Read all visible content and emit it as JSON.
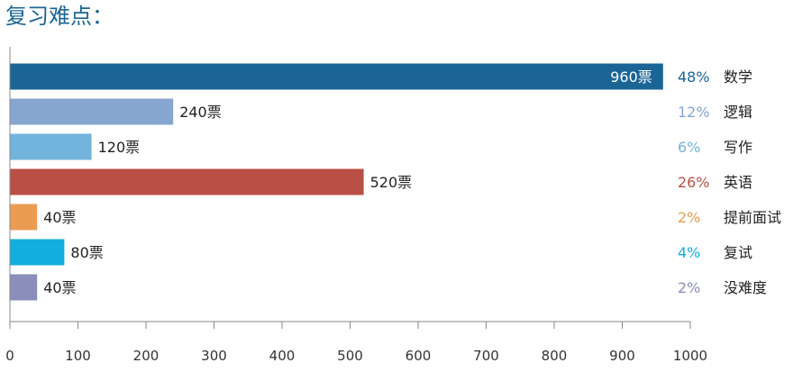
{
  "chart_data": {
    "type": "bar",
    "orientation": "horizontal",
    "title": "复习难点：",
    "xlim": [
      0,
      1000
    ],
    "x_ticks": [
      "0",
      "100",
      "200",
      "300",
      "400",
      "500",
      "600",
      "700",
      "800",
      "900",
      "1000"
    ],
    "categories": [
      "数学",
      "逻辑",
      "写作",
      "英语",
      "提前面试",
      "复试",
      "没难度"
    ],
    "values": [
      960,
      240,
      120,
      520,
      40,
      80,
      40
    ],
    "value_labels": [
      "960票",
      "240票",
      "120票",
      "520票",
      "40票",
      "80票",
      "40票"
    ],
    "percent_labels": [
      "48%",
      "12%",
      "6%",
      "26%",
      "2%",
      "4%",
      "2%"
    ],
    "colors": [
      "#1a6596",
      "#86a6cf",
      "#72b4dc",
      "#b94f45",
      "#eb9c53",
      "#12aee0",
      "#8a8eba"
    ],
    "grid": false
  }
}
